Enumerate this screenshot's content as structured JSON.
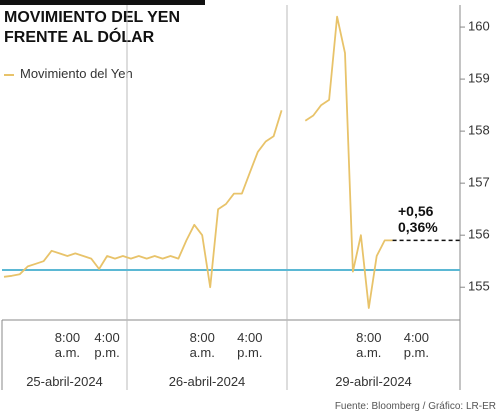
{
  "chart_data": {
    "type": "line",
    "title": "MOVIMIENTO DEL YEN FRENTE AL DÓLAR",
    "categories": [
      null,
      null,
      null,
      null,
      null,
      null,
      null,
      null,
      "8:00 a.m.",
      null,
      null,
      null,
      null,
      "4:00 p.m.",
      null,
      null,
      null,
      null,
      null,
      null,
      null,
      null,
      null,
      null,
      null,
      "8:00 a.m.",
      null,
      null,
      null,
      null,
      null,
      "4:00 p.m.",
      null,
      null,
      null,
      null,
      null,
      null,
      null,
      null,
      null,
      null,
      null,
      null,
      null,
      null,
      "8:00 a.m.",
      null,
      null,
      null,
      null,
      null,
      "4:00 p.m.",
      null,
      null,
      null,
      null,
      null
    ],
    "series": [
      {
        "name": "Movimiento del Yen",
        "color": "#e8c36a",
        "values": [
          155.2,
          155.22,
          155.25,
          155.4,
          155.45,
          155.5,
          155.7,
          155.65,
          155.6,
          155.65,
          155.6,
          155.55,
          155.35,
          155.6,
          155.55,
          155.6,
          155.55,
          155.6,
          155.55,
          155.6,
          155.55,
          155.6,
          155.55,
          155.9,
          156.2,
          156.0,
          155.0,
          156.5,
          156.6,
          156.8,
          156.8,
          157.2,
          157.6,
          157.8,
          157.9,
          158.4,
          null,
          null,
          158.2,
          158.3,
          158.5,
          158.6,
          160.2,
          159.5,
          155.3,
          156.0,
          154.6,
          155.6,
          155.9,
          155.9,
          null,
          null,
          null,
          null,
          null,
          null,
          null,
          null
        ]
      }
    ],
    "days": [
      "25-abril-2024",
      "26-abril-2024",
      "29-abril-2024"
    ],
    "reference_line": {
      "value": 155.33,
      "color": "#5bb8d4"
    },
    "annotation": [
      "+0,56",
      "0,36%"
    ],
    "ylim": [
      154.37,
      160.52
    ],
    "yticks": [
      155,
      156,
      157,
      158,
      159,
      160
    ],
    "source": "Fuente: Bloomberg / Gráfico: LR-ER"
  }
}
